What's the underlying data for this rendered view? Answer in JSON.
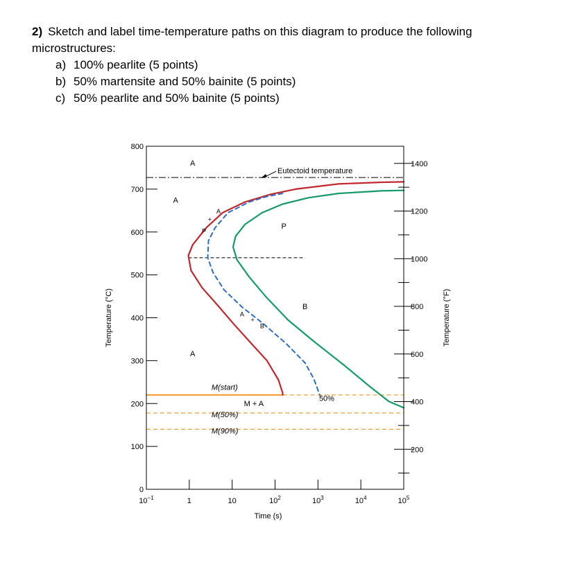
{
  "question": {
    "number": "2)",
    "stem": "Sketch and label time-temperature paths on this diagram to produce the following microstructures:",
    "parts": [
      {
        "label": "a)",
        "text": "100% pearlite (5 points)"
      },
      {
        "label": "b)",
        "text": "50% martensite and 50% bainite (5 points)"
      },
      {
        "label": "c)",
        "text": "50% pearlite and 50% bainite (5 points)"
      }
    ]
  },
  "chart_data": {
    "type": "line",
    "title": "",
    "xlabel": "Time (s)",
    "ylabel": "Temperature (°C)",
    "y2label": "Temperature (°F)",
    "x_scale": "log",
    "xlim": [
      0.1,
      100000
    ],
    "ylim": [
      0,
      800
    ],
    "y2lim": [
      32,
      1472
    ],
    "x_ticks": [
      {
        "value": 0.1,
        "base": "10",
        "exp": "−1"
      },
      {
        "value": 1,
        "base": "1",
        "exp": ""
      },
      {
        "value": 10,
        "base": "10",
        "exp": ""
      },
      {
        "value": 100,
        "base": "10",
        "exp": "2"
      },
      {
        "value": 1000,
        "base": "10",
        "exp": "3"
      },
      {
        "value": 10000,
        "base": "10",
        "exp": "4"
      },
      {
        "value": 100000,
        "base": "10",
        "exp": "5"
      }
    ],
    "y_ticks": [
      {
        "value": 0,
        "label": "0"
      },
      {
        "value": 100,
        "label": "100"
      },
      {
        "value": 200,
        "label": "200"
      },
      {
        "value": 300,
        "label": "300"
      },
      {
        "value": 400,
        "label": "400"
      },
      {
        "value": 500,
        "label": "500"
      },
      {
        "value": 600,
        "label": "600"
      },
      {
        "value": 700,
        "label": "700"
      },
      {
        "value": 800,
        "label": "800"
      }
    ],
    "y2_ticks": [
      {
        "value": 200,
        "label": "200"
      },
      {
        "value": 400,
        "label": "400"
      },
      {
        "value": 600,
        "label": "600"
      },
      {
        "value": 800,
        "label": "800"
      },
      {
        "value": 1000,
        "label": "1000"
      },
      {
        "value": 1200,
        "label": "1200"
      },
      {
        "value": 1400,
        "label": "1400"
      }
    ],
    "y2_minor_ticks": [
      100,
      300,
      500,
      700,
      900,
      1100,
      1300
    ],
    "colors": {
      "start": "#c0272d",
      "finish": "#159a6a",
      "fifty": "#2b6cc4",
      "martensite": "#f2a23a",
      "eutectoid": "#000000",
      "frame": "#000000"
    },
    "curves": [
      {
        "name": "start",
        "style": "solid",
        "points": [
          [
            100000,
            717
          ],
          [
            30000,
            716
          ],
          [
            3000,
            712
          ],
          [
            300,
            700
          ],
          [
            80,
            688
          ],
          [
            20,
            670
          ],
          [
            6,
            645
          ],
          [
            2.5,
            610
          ],
          [
            1.2,
            570
          ],
          [
            0.95,
            545
          ],
          [
            1.1,
            510
          ],
          [
            2,
            470
          ],
          [
            4.5,
            430
          ],
          [
            11,
            385
          ],
          [
            28,
            340
          ],
          [
            65,
            300
          ],
          [
            120,
            255
          ],
          [
            150,
            225
          ],
          [
            152,
            220
          ]
        ]
      },
      {
        "name": "finish",
        "style": "solid",
        "points": [
          [
            100000,
            697
          ],
          [
            30000,
            696
          ],
          [
            3000,
            690
          ],
          [
            600,
            680
          ],
          [
            150,
            665
          ],
          [
            50,
            645
          ],
          [
            20,
            618
          ],
          [
            12,
            590
          ],
          [
            10.5,
            565
          ],
          [
            13,
            535
          ],
          [
            25,
            495
          ],
          [
            60,
            450
          ],
          [
            200,
            395
          ],
          [
            800,
            345
          ],
          [
            4000,
            290
          ],
          [
            16000,
            240
          ],
          [
            45000,
            205
          ],
          [
            100000,
            190
          ]
        ]
      },
      {
        "name": "fifty",
        "style": "dashed",
        "points": [
          [
            150,
            690
          ],
          [
            60,
            682
          ],
          [
            25,
            670
          ],
          [
            8,
            645
          ],
          [
            4,
            610
          ],
          [
            2.8,
            580
          ],
          [
            2.7,
            540
          ],
          [
            3.6,
            505
          ],
          [
            6.5,
            465
          ],
          [
            17,
            425
          ],
          [
            55,
            385
          ],
          [
            180,
            340
          ],
          [
            500,
            295
          ],
          [
            800,
            258
          ],
          [
            1100,
            220
          ]
        ]
      }
    ],
    "eutectoid": {
      "value": 727,
      "label": "Eutectoid temperature"
    },
    "reference_line": {
      "y": 540,
      "x_range": [
        0.95,
        500
      ]
    },
    "martensite_lines": [
      {
        "name": "M(start)",
        "value": 220,
        "style": "solid",
        "x_range": [
          0.1,
          152
        ]
      },
      {
        "name": "M(start)",
        "value": 220,
        "style": "dashed",
        "x_range": [
          152,
          100000
        ]
      },
      {
        "name": "M(50%)",
        "value": 178,
        "style": "dashed",
        "x_range": [
          0.1,
          100000
        ]
      },
      {
        "name": "M(90%)",
        "value": 140,
        "style": "dashed",
        "x_range": [
          0.1,
          100000
        ]
      }
    ],
    "annotations": [
      {
        "text": "A",
        "x": 1.2,
        "y": 755,
        "font": "normal"
      },
      {
        "text": "A",
        "x": 0.48,
        "y": 668,
        "font": "normal"
      },
      {
        "text": "A",
        "x": 1.2,
        "y": 310,
        "font": "normal"
      },
      {
        "text": "P",
        "x": 160,
        "y": 608,
        "font": "normal"
      },
      {
        "text": "B",
        "x": 500,
        "y": 420,
        "font": "normal"
      },
      {
        "text": "A",
        "x": 4.8,
        "y": 643,
        "font": "small"
      },
      {
        "text": "+",
        "x": 3.0,
        "y": 625,
        "font": "small"
      },
      {
        "text": "P",
        "x": 2.2,
        "y": 597,
        "font": "small"
      },
      {
        "text": "A",
        "x": 17,
        "y": 403,
        "font": "small"
      },
      {
        "text": "+",
        "x": 30,
        "y": 390,
        "font": "small"
      },
      {
        "text": "B",
        "x": 50,
        "y": 376,
        "font": "small"
      },
      {
        "text": "M + A",
        "x": 32,
        "y": 194,
        "font": "normal"
      },
      {
        "text": "50%",
        "x": 1600,
        "y": 206,
        "font": "normal"
      },
      {
        "text": "M(start)",
        "x": 3.3,
        "y": 232,
        "font": "italic"
      },
      {
        "text": "M(50%)",
        "x": 3.3,
        "y": 168,
        "font": "italic"
      },
      {
        "text": "M(90%)",
        "x": 3.3,
        "y": 130,
        "font": "italic"
      }
    ]
  }
}
